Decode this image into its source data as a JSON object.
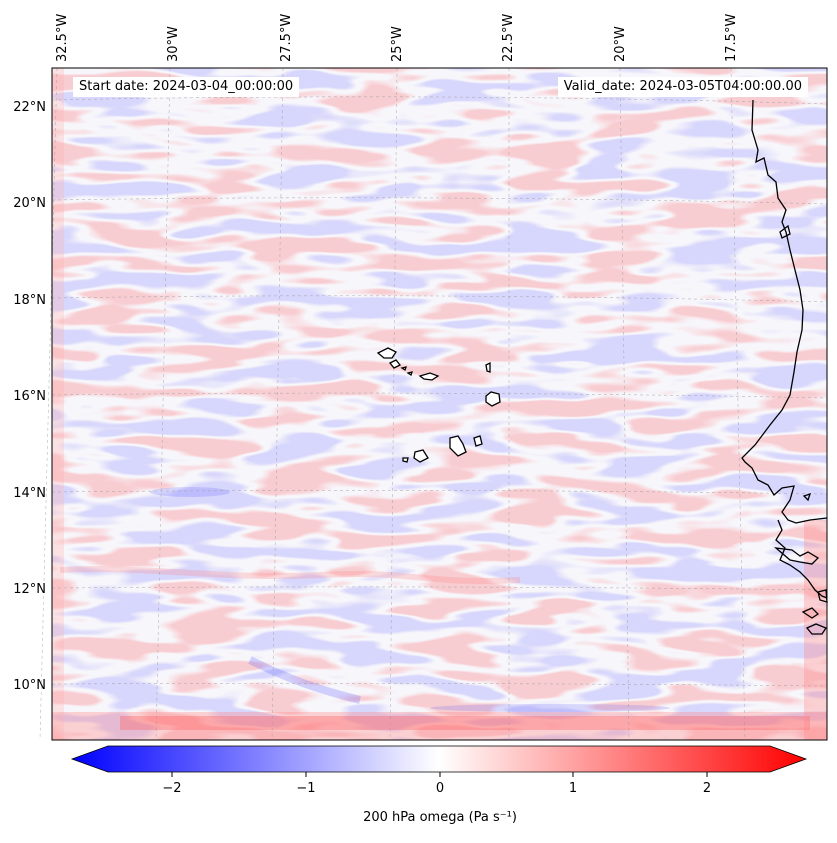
{
  "map": {
    "start_label": "Start date: 2024-03-04_00:00:00",
    "valid_label": "Valid_date: 2024-03-05T04:00:00.00",
    "lon_ticks": [
      "32.5°W",
      "30°W",
      "27.5°W",
      "25°W",
      "22.5°W",
      "20°W",
      "17.5°W"
    ],
    "lat_ticks": [
      "22°N",
      "20°N",
      "18°N",
      "16°N",
      "14°N",
      "12°N",
      "10°N"
    ],
    "field_colors": {
      "negative": "#0000ff",
      "zero": "#ffffff",
      "positive": "#ff0000"
    },
    "coastline_color": "#000000"
  },
  "colorbar": {
    "ticks": [
      "−2",
      "−1",
      "0",
      "1",
      "2"
    ],
    "label": "200 hPa omega (Pa s⁻¹)",
    "range": [
      -2.7,
      2.7
    ],
    "extend": "both"
  }
}
